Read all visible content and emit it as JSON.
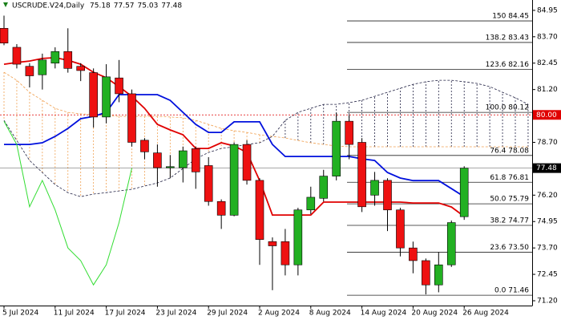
{
  "chart_data": {
    "type": "candlestick",
    "title": "USCRUDE.V24,Daily",
    "ohlc_header": [
      75.18,
      77.57,
      75.03,
      77.48
    ],
    "categories": [
      "5 Jul 2024",
      null,
      null,
      null,
      "11 Jul 2024",
      null,
      null,
      null,
      "17 Jul 2024",
      null,
      null,
      null,
      "23 Jul 2024",
      null,
      null,
      null,
      "29 Jul 2024",
      null,
      null,
      null,
      "2 Aug 2024",
      null,
      null,
      null,
      "8 Aug 2024",
      null,
      null,
      null,
      "14 Aug 2024",
      null,
      null,
      null,
      "20 Aug 2024",
      null,
      null,
      null,
      "26 Aug 2024",
      null,
      null,
      null,
      null,
      null
    ],
    "open": [
      84.1,
      83.2,
      82.3,
      81.9,
      82.45,
      83.0,
      82.3,
      82.0,
      79.9,
      81.75,
      81.0,
      78.8,
      78.2,
      77.5,
      77.5,
      78.4,
      77.6,
      75.9,
      75.25,
      78.6,
      76.9,
      74.0,
      74.0,
      72.9,
      75.5,
      76.05,
      77.1,
      79.7,
      78.7,
      76.2,
      76.9,
      75.5,
      73.7,
      73.1,
      71.95,
      72.9,
      75.18,
      null,
      null,
      null,
      null,
      null
    ],
    "high": [
      84.7,
      83.35,
      82.45,
      82.9,
      83.2,
      84.1,
      82.45,
      82.2,
      82.4,
      82.6,
      81.2,
      78.9,
      78.6,
      78.1,
      78.5,
      78.5,
      78.0,
      76.0,
      78.7,
      78.8,
      77.0,
      74.2,
      74.6,
      75.6,
      76.6,
      77.4,
      80.1,
      80.0,
      78.9,
      77.3,
      77.0,
      75.6,
      74.0,
      73.2,
      73.5,
      75.0,
      77.57,
      null,
      null,
      null,
      null,
      null
    ],
    "low": [
      83.3,
      82.2,
      81.3,
      81.2,
      82.2,
      82.0,
      81.6,
      79.4,
      79.6,
      80.6,
      78.5,
      77.9,
      76.6,
      77.0,
      76.8,
      76.5,
      75.7,
      74.6,
      75.2,
      76.7,
      72.9,
      71.7,
      72.4,
      72.4,
      75.3,
      75.9,
      76.9,
      77.9,
      75.4,
      75.7,
      74.5,
      73.3,
      72.5,
      71.5,
      71.6,
      72.8,
      75.03,
      null,
      null,
      null,
      null,
      null
    ],
    "close": [
      83.4,
      82.4,
      81.85,
      82.6,
      83.0,
      82.2,
      82.1,
      79.9,
      81.8,
      81.0,
      78.7,
      78.25,
      77.5,
      77.55,
      78.3,
      77.3,
      75.9,
      75.25,
      78.6,
      76.9,
      74.1,
      73.8,
      72.9,
      75.5,
      76.1,
      77.1,
      79.7,
      78.6,
      75.65,
      76.9,
      75.5,
      73.7,
      73.1,
      71.95,
      72.9,
      74.9,
      77.48,
      null,
      null,
      null,
      null,
      null
    ],
    "up_color": "#22b022",
    "down_color": "#ee1111",
    "series": [
      {
        "color": "#e00000",
        "values": [
          82.4,
          82.48,
          82.55,
          82.67,
          82.71,
          82.59,
          82.4,
          82.02,
          81.76,
          81.34,
          80.88,
          80.31,
          79.55,
          79.29,
          79.06,
          78.41,
          78.41,
          78.68,
          78.53,
          78.22,
          76.89,
          75.26,
          75.26,
          75.26,
          75.26,
          75.87,
          75.87,
          75.87,
          75.87,
          75.87,
          75.87,
          75.87,
          75.83,
          75.83,
          75.83,
          75.64,
          75.19,
          null,
          null,
          null,
          null,
          null
        ]
      },
      {
        "color": "#0010dd",
        "values": [
          78.6,
          78.6,
          78.6,
          78.68,
          78.98,
          79.36,
          79.82,
          79.93,
          80.12,
          80.96,
          80.96,
          80.96,
          80.96,
          80.69,
          80.12,
          79.55,
          79.17,
          79.17,
          79.67,
          79.67,
          79.67,
          78.6,
          78.03,
          78.03,
          78.03,
          78.03,
          78.03,
          78.03,
          77.92,
          77.84,
          77.27,
          77.01,
          76.89,
          76.89,
          76.89,
          76.51,
          76.13,
          null,
          null,
          null,
          null,
          null
        ]
      },
      {
        "color": "#33dd33",
        "values": [
          79.7,
          78.6,
          75.65,
          76.9,
          75.5,
          73.7,
          73.1,
          71.95,
          72.9,
          74.9,
          77.48,
          null,
          null,
          null,
          null,
          null,
          null,
          null,
          null,
          null,
          null,
          null,
          null,
          null,
          null,
          null,
          null,
          null,
          null,
          null,
          null,
          null,
          null,
          null,
          null,
          null,
          null,
          null,
          null,
          null,
          null,
          null
        ]
      }
    ],
    "cloud": {
      "span_a": [
        82.02,
        81.64,
        81.07,
        80.69,
        80.31,
        80.12,
        80.05,
        80.01,
        79.97,
        79.93,
        79.93,
        79.93,
        79.93,
        79.9,
        79.86,
        79.74,
        79.55,
        79.36,
        79.25,
        79.17,
        79.06,
        78.98,
        78.91,
        78.79,
        78.68,
        78.6,
        78.53,
        78.49,
        78.49,
        78.49,
        78.49,
        78.49,
        78.49,
        78.49,
        78.49,
        78.49,
        78.49,
        78.49,
        78.49,
        78.49,
        78.49,
        78.49
      ],
      "span_b": [
        79.74,
        78.79,
        77.84,
        77.27,
        76.7,
        76.32,
        76.13,
        76.25,
        76.32,
        76.4,
        76.48,
        76.63,
        76.78,
        77.01,
        77.46,
        77.92,
        78.22,
        78.41,
        78.49,
        78.6,
        78.68,
        78.98,
        79.74,
        80.12,
        80.31,
        80.5,
        80.5,
        80.58,
        80.69,
        80.88,
        81.07,
        81.26,
        81.45,
        81.57,
        81.64,
        81.64,
        81.57,
        81.49,
        81.34,
        81.07,
        80.81,
        80.5
      ],
      "span_a_color": "#f0a050",
      "span_b_color": "#222244"
    },
    "ylim": [
      71.01,
      85.44
    ],
    "yticks": [
      84.95,
      {
        "value": 83.7,
        "label": "83.70"
      },
      82.45,
      {
        "value": 81.2,
        "label": "81.20"
      },
      {
        "value": 78.7,
        "label": "78.70"
      },
      {
        "value": 76.2,
        "label": "76.20"
      },
      74.95,
      {
        "value": 73.7,
        "label": "73.70"
      },
      72.45,
      {
        "value": 71.2,
        "label": "71.20"
      }
    ],
    "fib_levels": [
      {
        "value": 84.45,
        "label": "150 84.45"
      },
      {
        "value": 83.43,
        "label": "138.2 83.43"
      },
      {
        "value": 82.16,
        "label": "123.6 82.16"
      },
      {
        "value": 80.12,
        "label": "100.0 80.12"
      },
      {
        "value": 78.08,
        "label": "76.4 78.08"
      },
      {
        "value": 76.81,
        "label": "61.8 76.81"
      },
      {
        "value": 75.79,
        "label": "50.0 75.79"
      },
      {
        "value": 74.77,
        "label": "38.2 74.77"
      },
      {
        "value": 73.5,
        "label": "23.6 73.50"
      },
      {
        "value": 71.46,
        "label": "0.0 71.46"
      }
    ],
    "fib_color": "#222222",
    "price_lines": [
      {
        "value": 80,
        "label": "80.00",
        "color": "#e00000"
      },
      {
        "value": 77.48,
        "label": "77.48",
        "color": "#000000"
      }
    ]
  }
}
